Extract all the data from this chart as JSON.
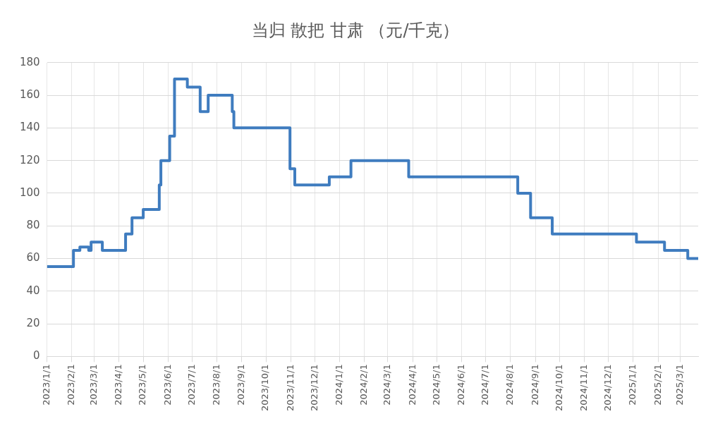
{
  "chart_data": {
    "type": "step",
    "title": "当归 散把 甘肃 （元/千克）",
    "series": [
      {
        "color": "#3f7cbf",
        "x": [
          "2023-01-01",
          "2023-02-03",
          "2023-02-11",
          "2023-02-22",
          "2023-02-25",
          "2023-03-11",
          "2023-04-09",
          "2023-04-17",
          "2023-05-01",
          "2023-05-21",
          "2023-05-23",
          "2023-06-03",
          "2023-06-09",
          "2023-06-25",
          "2023-07-11",
          "2023-07-21",
          "2023-08-20",
          "2023-08-22",
          "2023-10-31",
          "2023-11-06",
          "2023-12-19",
          "2024-01-15",
          "2024-03-27",
          "2024-08-10",
          "2024-08-26",
          "2024-09-22",
          "2025-01-05",
          "2025-02-09",
          "2025-03-10",
          "2025-03-23"
        ],
        "values": [
          55,
          65,
          67,
          65,
          70,
          65,
          75,
          85,
          90,
          105,
          120,
          135,
          170,
          165,
          150,
          160,
          150,
          140,
          115,
          105,
          110,
          120,
          110,
          100,
          85,
          75,
          70,
          65,
          60,
          60
        ]
      }
    ],
    "xlim": [
      "2023-01-01",
      "2025-03-23"
    ],
    "xticks": [
      {
        "value": "2023-01-01",
        "label": "2023/1/1"
      },
      {
        "value": "2023-02-01",
        "label": "2023/2/1"
      },
      {
        "value": "2023-03-01",
        "label": "2023/3/1"
      },
      {
        "value": "2023-04-01",
        "label": "2023/4/1"
      },
      {
        "value": "2023-05-01",
        "label": "2023/5/1"
      },
      {
        "value": "2023-06-01",
        "label": "2023/6/1"
      },
      {
        "value": "2023-07-01",
        "label": "2023/7/1"
      },
      {
        "value": "2023-08-01",
        "label": "2023/8/1"
      },
      {
        "value": "2023-09-01",
        "label": "2023/9/1"
      },
      {
        "value": "2023-10-01",
        "label": "2023/10/1"
      },
      {
        "value": "2023-11-01",
        "label": "2023/11/1"
      },
      {
        "value": "2023-12-01",
        "label": "2023/12/1"
      },
      {
        "value": "2024-01-01",
        "label": "2024/1/1"
      },
      {
        "value": "2024-02-01",
        "label": "2024/2/1"
      },
      {
        "value": "2024-03-01",
        "label": "2024/3/1"
      },
      {
        "value": "2024-04-01",
        "label": "2024/4/1"
      },
      {
        "value": "2024-05-01",
        "label": "2024/5/1"
      },
      {
        "value": "2024-06-01",
        "label": "2024/6/1"
      },
      {
        "value": "2024-07-01",
        "label": "2024/7/1"
      },
      {
        "value": "2024-08-01",
        "label": "2024/8/1"
      },
      {
        "value": "2024-09-01",
        "label": "2024/9/1"
      },
      {
        "value": "2024-10-01",
        "label": "2024/10/1"
      },
      {
        "value": "2024-11-01",
        "label": "2024/11/1"
      },
      {
        "value": "2024-12-01",
        "label": "2024/12/1"
      },
      {
        "value": "2025-01-01",
        "label": "2025/1/1"
      },
      {
        "value": "2025-02-01",
        "label": "2025/2/1"
      },
      {
        "value": "2025-03-01",
        "label": "2025/3/1"
      }
    ],
    "ylim": [
      0,
      180
    ],
    "yticks": [
      0,
      20,
      40,
      60,
      80,
      100,
      120,
      140,
      160,
      180
    ],
    "grid": true,
    "legend": false,
    "marker": "none",
    "line_style": "solid"
  }
}
